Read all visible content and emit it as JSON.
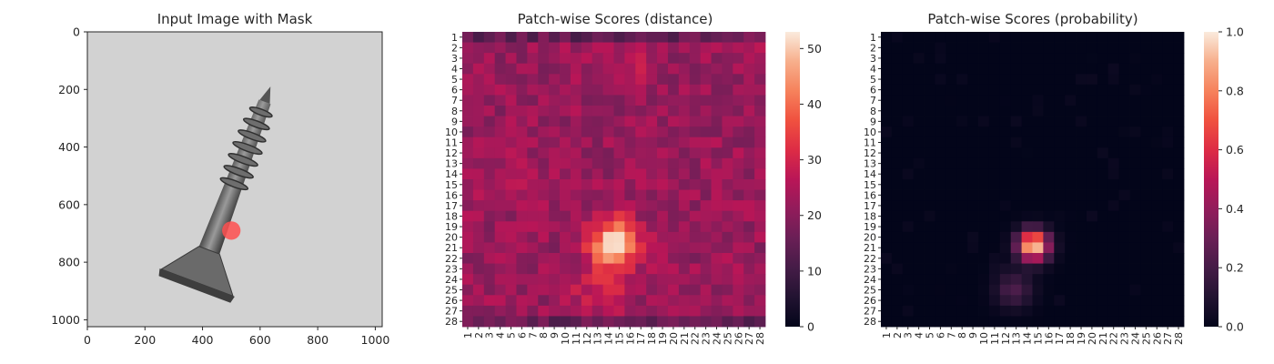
{
  "chart_data": [
    {
      "type": "image",
      "title": "Input Image with Mask",
      "xlim": [
        0,
        1024
      ],
      "ylim": [
        1024,
        0
      ],
      "xticks": [
        "0",
        "200",
        "400",
        "600",
        "800",
        "1000"
      ],
      "yticks": [
        "0",
        "200",
        "400",
        "600",
        "800",
        "1000"
      ],
      "mask_spot": {
        "x": 500,
        "y": 690,
        "radius": 32,
        "color": "#ff5050"
      }
    },
    {
      "type": "heatmap",
      "title": "Patch-wise Scores (distance)",
      "rows": [
        "1",
        "2",
        "3",
        "4",
        "5",
        "6",
        "7",
        "8",
        "9",
        "10",
        "11",
        "12",
        "13",
        "14",
        "15",
        "16",
        "17",
        "18",
        "19",
        "20",
        "21",
        "22",
        "23",
        "24",
        "25",
        "26",
        "27",
        "28"
      ],
      "cols": [
        "1",
        "2",
        "3",
        "4",
        "5",
        "6",
        "7",
        "8",
        "9",
        "10",
        "11",
        "12",
        "13",
        "14",
        "15",
        "16",
        "17",
        "18",
        "19",
        "20",
        "21",
        "22",
        "23",
        "24",
        "25",
        "26",
        "27",
        "28"
      ],
      "colorbar": {
        "min": 0,
        "max": 53,
        "ticks": [
          "0",
          "10",
          "20",
          "30",
          "40",
          "50"
        ]
      },
      "background_value": 22,
      "hotspots": [
        {
          "row": 20.5,
          "col": 14.5,
          "peak": 31,
          "spread": 1.5
        },
        {
          "row": 24.5,
          "col": 13.5,
          "peak": 9,
          "spread": 1.8
        },
        {
          "row": 3.5,
          "col": 16,
          "peak": 4,
          "spread": 1.3
        },
        {
          "row": 14.5,
          "col": 4.5,
          "peak": 4,
          "spread": 1.6
        },
        {
          "row": 1,
          "col": 27,
          "peak": 4,
          "spread": 1.2
        }
      ],
      "cold_rows": [
        "1",
        "28"
      ]
    },
    {
      "type": "heatmap",
      "title": "Patch-wise Scores (probability)",
      "rows": [
        "1",
        "2",
        "3",
        "4",
        "5",
        "6",
        "7",
        "8",
        "9",
        "10",
        "11",
        "12",
        "13",
        "14",
        "15",
        "16",
        "17",
        "18",
        "19",
        "20",
        "21",
        "22",
        "23",
        "24",
        "25",
        "26",
        "27",
        "28"
      ],
      "cols": [
        "1",
        "2",
        "3",
        "4",
        "5",
        "6",
        "7",
        "8",
        "9",
        "10",
        "11",
        "12",
        "13",
        "14",
        "15",
        "16",
        "17",
        "18",
        "19",
        "20",
        "21",
        "22",
        "23",
        "24",
        "25",
        "26",
        "27",
        "28"
      ],
      "colorbar": {
        "min": 0.0,
        "max": 1.0,
        "ticks": [
          "0.0",
          "0.2",
          "0.4",
          "0.6",
          "0.8",
          "1.0"
        ]
      },
      "background_value": 0.0,
      "hotspots": [
        {
          "row": 20.8,
          "col": 14.6,
          "peak": 1.0,
          "spread": 1.0
        },
        {
          "row": 25,
          "col": 12.8,
          "peak": 0.22,
          "spread": 1.2
        }
      ]
    }
  ]
}
